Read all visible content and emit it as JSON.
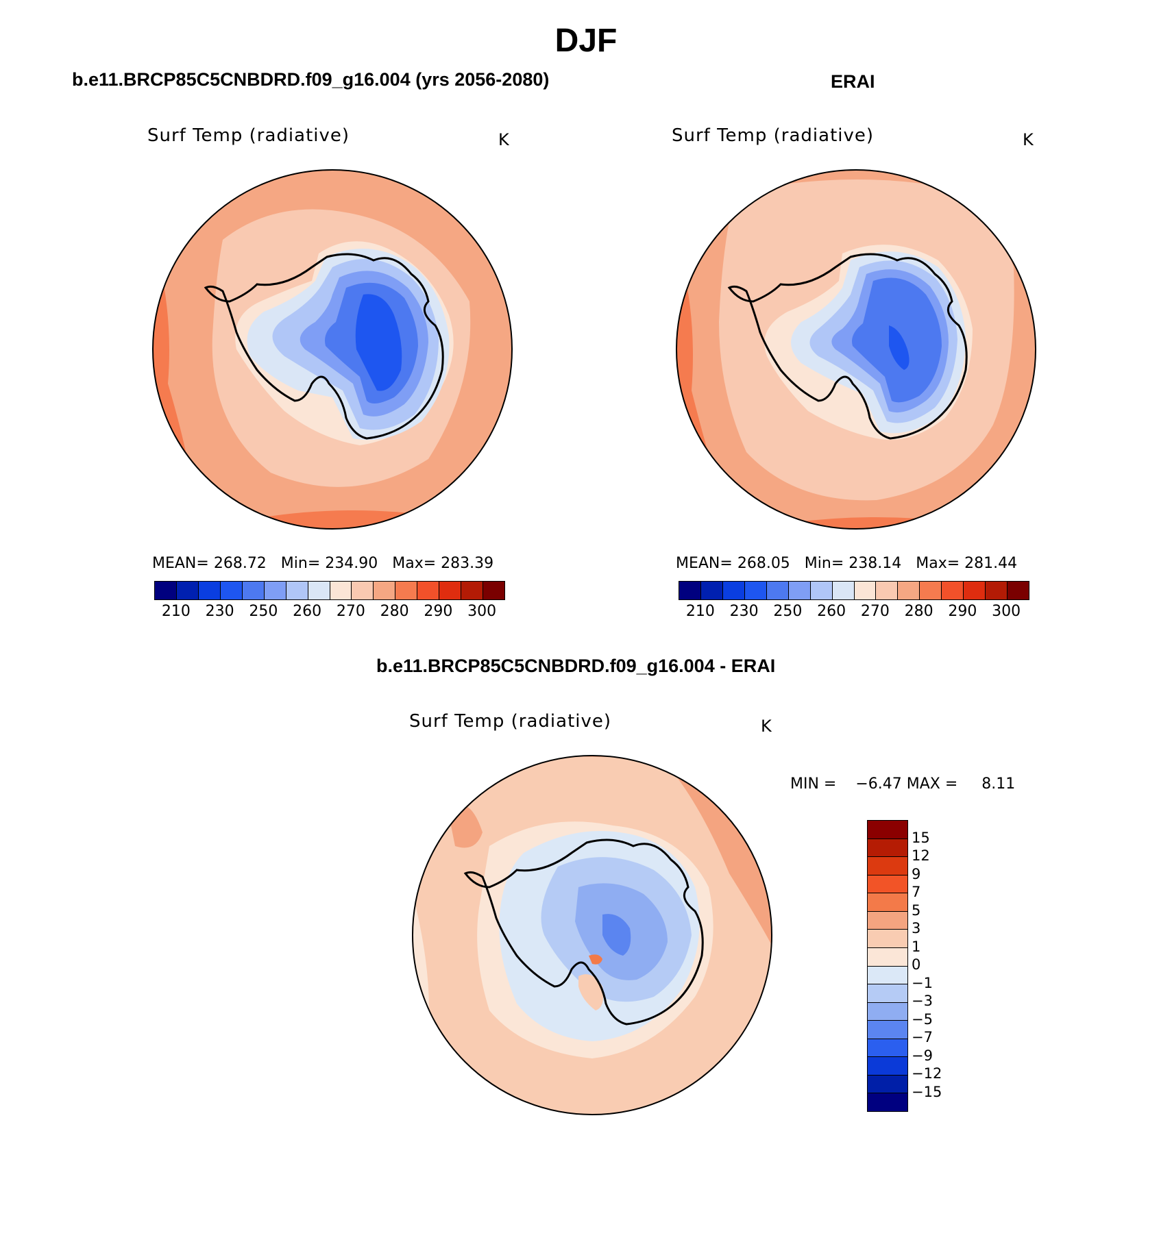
{
  "title": "DJF",
  "panels": {
    "model": {
      "heading": "b.e11.BRCP85C5CNBDRD.f09_g16.004 (yrs 2056-2080)",
      "var_label": "Surf Temp (radiative)",
      "units": "K",
      "stats": {
        "mean_label": "MEAN=",
        "mean": "268.72",
        "min_label": "Min=",
        "min": "234.90",
        "max_label": "Max=",
        "max": "283.39"
      }
    },
    "obs": {
      "heading": "ERAI",
      "var_label": "Surf Temp (radiative)",
      "units": "K",
      "stats": {
        "mean_label": "MEAN=",
        "mean": "268.05",
        "min_label": "Min=",
        "min": "238.14",
        "max_label": "Max=",
        "max": "281.44"
      }
    },
    "diff": {
      "heading": "b.e11.BRCP85C5CNBDRD.f09_g16.004 - ERAI",
      "var_label": "Surf Temp (radiative)",
      "units": "K",
      "stats": {
        "min_label": "MIN =",
        "min": "−6.47",
        "max_label": "MAX =",
        "max": "8.11"
      }
    }
  },
  "abs_colorbar": {
    "colors": [
      "#00007f",
      "#0020b0",
      "#0a3ee0",
      "#1e56f0",
      "#4d79f0",
      "#7f9ef5",
      "#b0c6f7",
      "#dae6f6",
      "#fbe5d6",
      "#f9c9b1",
      "#f5a783",
      "#f57b4f",
      "#f2512a",
      "#df2d0f",
      "#b31b05",
      "#7a0000"
    ],
    "tick_labels": [
      "210",
      "230",
      "250",
      "260",
      "270",
      "280",
      "290",
      "300"
    ]
  },
  "diff_colorbar": {
    "colors": [
      "#8b0000",
      "#b51c04",
      "#dc3a10",
      "#f25427",
      "#f37a49",
      "#f4a480",
      "#f9ccb2",
      "#fbe6d7",
      "#dbe8f7",
      "#b5cbf5",
      "#8fadf2",
      "#5b85f0",
      "#2b5fef",
      "#0b3ad8",
      "#001fa8",
      "#000080"
    ],
    "tick_labels": [
      "15",
      "12",
      "9",
      "7",
      "5",
      "3",
      "1",
      "0",
      "−1",
      "−3",
      "−5",
      "−7",
      "−9",
      "−12",
      "−15"
    ]
  },
  "chart_data": [
    {
      "type": "heatmap",
      "title": "b.e11.BRCP85C5CNBDRD.f09_g16.004 (yrs 2056-2080)",
      "variable": "Surf Temp (radiative)",
      "units": "K",
      "projection": "south polar stereographic",
      "contour_levels": [
        210,
        220,
        230,
        240,
        250,
        255,
        260,
        265,
        270,
        275,
        280,
        285,
        290,
        295,
        300
      ],
      "mean": 268.72,
      "min": 234.9,
      "max": 283.39
    },
    {
      "type": "heatmap",
      "title": "ERAI",
      "variable": "Surf Temp (radiative)",
      "units": "K",
      "projection": "south polar stereographic",
      "contour_levels": [
        210,
        220,
        230,
        240,
        250,
        255,
        260,
        265,
        270,
        275,
        280,
        285,
        290,
        295,
        300
      ],
      "mean": 268.05,
      "min": 238.14,
      "max": 281.44
    },
    {
      "type": "heatmap",
      "title": "b.e11.BRCP85C5CNBDRD.f09_g16.004 - ERAI",
      "variable": "Surf Temp (radiative)",
      "units": "K",
      "projection": "south polar stereographic",
      "contour_levels": [
        -15,
        -12,
        -9,
        -7,
        -5,
        -3,
        -1,
        0,
        1,
        3,
        5,
        7,
        9,
        12,
        15
      ],
      "min": -6.47,
      "max": 8.11
    }
  ]
}
